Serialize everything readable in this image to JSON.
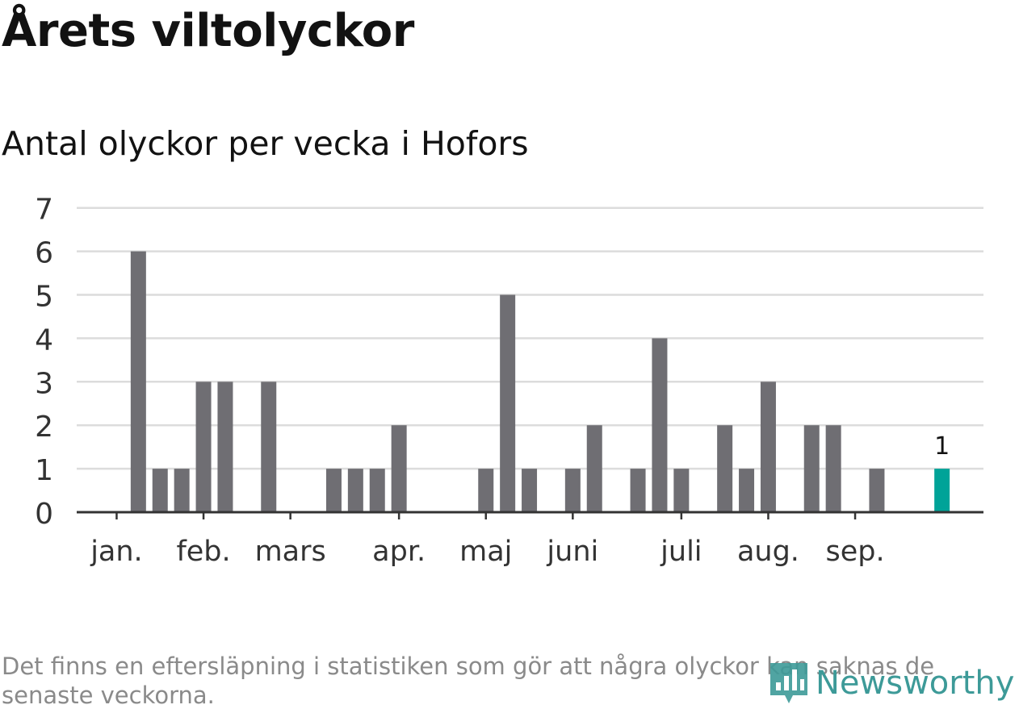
{
  "header": {
    "title": "Årets viltolyckor",
    "subtitle": "Antal olyckor per vecka i Hofors"
  },
  "footer": {
    "note": "Det finns en eftersläpning i statistiken som gör att några olyckor kan saknas de senaste veckorna.",
    "logo_text": "Newsworthy"
  },
  "colors": {
    "bar": "#6f6e73",
    "highlight": "#00a398",
    "grid": "#dcdcdc",
    "axis": "#333333",
    "logo": "#3d9a98"
  },
  "chart_data": {
    "type": "bar",
    "title": "Årets viltolyckor",
    "subtitle": "Antal olyckor per vecka i Hofors",
    "xlabel": "",
    "ylabel": "",
    "ylim": [
      0,
      7
    ],
    "yticks": [
      0,
      1,
      2,
      3,
      4,
      5,
      6,
      7
    ],
    "grid": true,
    "x_weeks": [
      1,
      2,
      3,
      4,
      5,
      6,
      7,
      8,
      9,
      10,
      11,
      12,
      13,
      14,
      15,
      16,
      17,
      18,
      19,
      20,
      21,
      22,
      23,
      24,
      25,
      26,
      27,
      28,
      29,
      30,
      31,
      32,
      33,
      34,
      35,
      36,
      37,
      38,
      39,
      40,
      41,
      42
    ],
    "values": [
      0,
      6,
      1,
      1,
      3,
      3,
      0,
      3,
      0,
      0,
      1,
      1,
      1,
      2,
      0,
      0,
      0,
      1,
      5,
      1,
      0,
      1,
      2,
      0,
      1,
      4,
      1,
      0,
      2,
      1,
      3,
      0,
      2,
      2,
      0,
      1,
      0,
      0,
      1,
      null,
      null,
      null
    ],
    "highlight_index": 38,
    "highlight_label": "1",
    "month_labels": [
      {
        "label": "jan.",
        "week": 1.5
      },
      {
        "label": "feb.",
        "week": 5.5
      },
      {
        "label": "mars",
        "week": 9.5
      },
      {
        "label": "apr.",
        "week": 14.5
      },
      {
        "label": "maj",
        "week": 18.5
      },
      {
        "label": "juni",
        "week": 22.5
      },
      {
        "label": "juli",
        "week": 27.5
      },
      {
        "label": "aug.",
        "week": 31.5
      },
      {
        "label": "sep.",
        "week": 35.5
      }
    ]
  }
}
